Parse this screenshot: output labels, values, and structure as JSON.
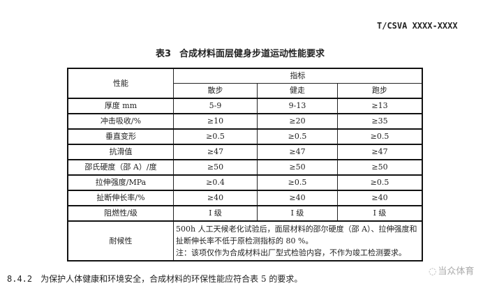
{
  "header": "T/CSVA XXXX-XXXX",
  "table_title": {
    "label": "表3",
    "text": "合成材料面层健身步道运动性能要求"
  },
  "table": {
    "col_header": "性能",
    "group_header": "指标",
    "sub_headers": [
      "散步",
      "健走",
      "跑步"
    ],
    "rows": [
      {
        "name": "厚度 mm",
        "values": [
          "5-9",
          "9-13",
          "≥13"
        ]
      },
      {
        "name": "冲击吸收/%",
        "values": [
          "≥10",
          "≥20",
          "≥35"
        ]
      },
      {
        "name": "垂直变形",
        "values": [
          "≥0.5",
          "≥0.5",
          "≥0.5"
        ]
      },
      {
        "name": "抗滑值",
        "values": [
          "≥47",
          "≥47",
          "≥47"
        ]
      },
      {
        "name": "邵氏硬度（邵 A）/度",
        "values": [
          "≥50",
          "≥50",
          "≥50"
        ]
      },
      {
        "name": "拉伸强度/MPa",
        "values": [
          "≥0.4",
          "≥0.5",
          "≥0.5"
        ]
      },
      {
        "name": "扯断伸长率/%",
        "values": [
          "≥40",
          "≥40",
          "≥40"
        ]
      },
      {
        "name": "阻燃性/级",
        "values": [
          "I 级",
          "I 级",
          "I 级"
        ]
      }
    ],
    "weather": {
      "name": "耐候性",
      "line1": "500h 人工天候老化试验后，面层材料的邵尔硬度（邵 A）、拉伸强度和扯断伸长率不低于原检测指标的 80 %。",
      "line2": "注：该项仅作为合成材料出厂型式检验内容，不作为竣工检测要求。"
    }
  },
  "footer": {
    "number": "8.4.2",
    "text": "为保护人体健康和环境安全，合成材料的环保性能应符合表 5 的要求。"
  },
  "watermark": "当众体育"
}
